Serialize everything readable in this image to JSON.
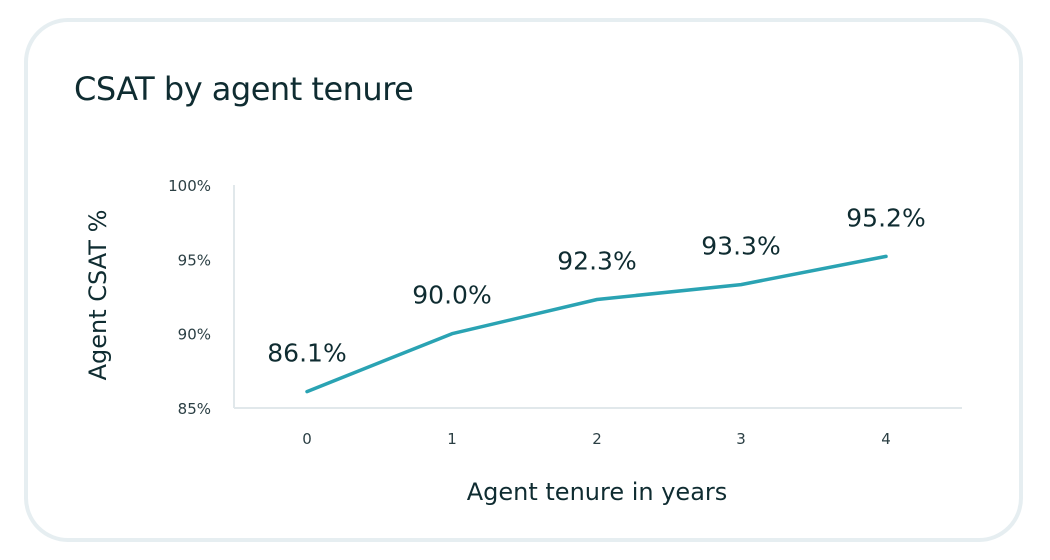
{
  "chart_data": {
    "type": "line",
    "title": "CSAT by agent tenure",
    "xlabel": "Agent tenure in years",
    "ylabel": "Agent CSAT %",
    "x": [
      0,
      1,
      2,
      3,
      4
    ],
    "x_tick_labels": [
      "0",
      "1",
      "2",
      "3",
      "4"
    ],
    "series": [
      {
        "values": [
          86.1,
          90.0,
          92.3,
          93.3,
          95.2
        ],
        "data_labels": [
          "86.1%",
          "90.0%",
          "92.3%",
          "93.3%",
          "95.2%"
        ],
        "color": "#2aa3b3"
      }
    ],
    "y_ticks": [
      85,
      90,
      95,
      100
    ],
    "y_tick_labels": [
      "85%",
      "90%",
      "95%",
      "100%"
    ],
    "ylim": [
      85,
      100
    ],
    "grid": false,
    "axis_color": "#e1e8eb"
  }
}
